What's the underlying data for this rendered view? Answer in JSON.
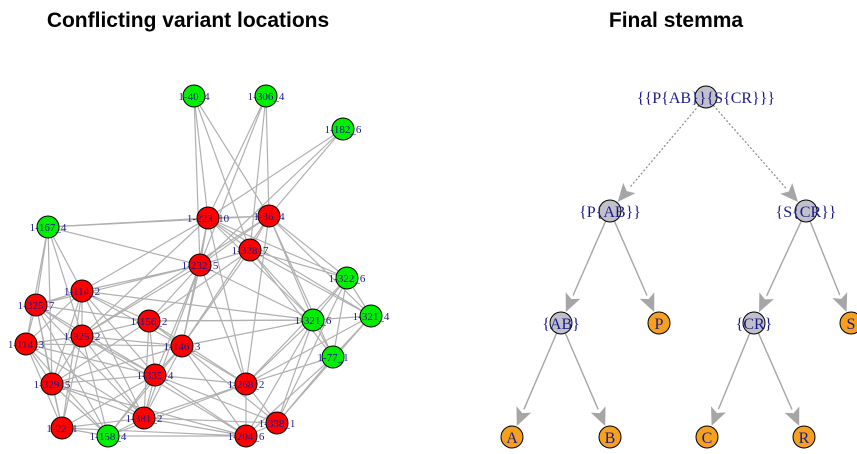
{
  "left_panel": {
    "title": "Conflicting variant locations",
    "colors": {
      "conflict": "#ff0000",
      "non_conflict": "#00ee00"
    },
    "nodes": [
      {
        "id": "n1",
        "label": "1-40_4",
        "status": "non_conflict"
      },
      {
        "id": "n2",
        "label": "1-306_4",
        "status": "non_conflict"
      },
      {
        "id": "n3",
        "label": "1-182_6",
        "status": "non_conflict"
      },
      {
        "id": "n4",
        "label": "1-167_4",
        "status": "non_conflict"
      },
      {
        "id": "n5",
        "label": "1-223_10",
        "status": "conflict"
      },
      {
        "id": "n6",
        "label": "1-36_4",
        "status": "conflict"
      },
      {
        "id": "n7",
        "label": "1-328_7",
        "status": "conflict"
      },
      {
        "id": "n8",
        "label": "1-232_5",
        "status": "conflict"
      },
      {
        "id": "n9",
        "label": "1-322_6",
        "status": "non_conflict"
      },
      {
        "id": "n10",
        "label": "1-114_2",
        "status": "conflict"
      },
      {
        "id": "n11",
        "label": "1-325_7",
        "status": "conflict"
      },
      {
        "id": "n12",
        "label": "1-321_6",
        "status": "non_conflict"
      },
      {
        "id": "n13",
        "label": "1-321_4",
        "status": "non_conflict"
      },
      {
        "id": "n14",
        "label": "1-156_2",
        "status": "conflict"
      },
      {
        "id": "n15",
        "label": "1-325_2",
        "status": "conflict"
      },
      {
        "id": "n16",
        "label": "1-114_3",
        "status": "conflict"
      },
      {
        "id": "n17",
        "label": "1-146_3",
        "status": "conflict"
      },
      {
        "id": "n18",
        "label": "1-77_1",
        "status": "non_conflict"
      },
      {
        "id": "n19",
        "label": "1-335_4",
        "status": "conflict"
      },
      {
        "id": "n20",
        "label": "1-329_5",
        "status": "conflict"
      },
      {
        "id": "n21",
        "label": "1-268_2",
        "status": "conflict"
      },
      {
        "id": "n22",
        "label": "1-381_2",
        "status": "conflict"
      },
      {
        "id": "n23",
        "label": "1-338_1",
        "status": "conflict"
      },
      {
        "id": "n24",
        "label": "1-22_1",
        "status": "conflict"
      },
      {
        "id": "n25",
        "label": "1-158_4",
        "status": "non_conflict"
      },
      {
        "id": "n26",
        "label": "1-204_6",
        "status": "conflict"
      }
    ],
    "edges": [
      [
        "n1",
        "n5"
      ],
      [
        "n1",
        "n6"
      ],
      [
        "n1",
        "n7"
      ],
      [
        "n1",
        "n8"
      ],
      [
        "n2",
        "n5"
      ],
      [
        "n2",
        "n6"
      ],
      [
        "n2",
        "n8"
      ],
      [
        "n2",
        "n7"
      ],
      [
        "n3",
        "n5"
      ],
      [
        "n3",
        "n6"
      ],
      [
        "n3",
        "n8"
      ],
      [
        "n4",
        "n5"
      ],
      [
        "n4",
        "n10"
      ],
      [
        "n4",
        "n11"
      ],
      [
        "n4",
        "n15"
      ],
      [
        "n4",
        "n16"
      ],
      [
        "n4",
        "n20"
      ],
      [
        "n4",
        "n8"
      ],
      [
        "n4",
        "n6"
      ],
      [
        "n5",
        "n6"
      ],
      [
        "n5",
        "n7"
      ],
      [
        "n5",
        "n8"
      ],
      [
        "n5",
        "n10"
      ],
      [
        "n5",
        "n15"
      ],
      [
        "n5",
        "n12"
      ],
      [
        "n5",
        "n9"
      ],
      [
        "n5",
        "n17"
      ],
      [
        "n5",
        "n21"
      ],
      [
        "n5",
        "n13"
      ],
      [
        "n6",
        "n7"
      ],
      [
        "n6",
        "n8"
      ],
      [
        "n6",
        "n9"
      ],
      [
        "n6",
        "n12"
      ],
      [
        "n6",
        "n13"
      ],
      [
        "n6",
        "n17"
      ],
      [
        "n6",
        "n21"
      ],
      [
        "n6",
        "n18"
      ],
      [
        "n6",
        "n15"
      ],
      [
        "n7",
        "n8"
      ],
      [
        "n7",
        "n9"
      ],
      [
        "n7",
        "n12"
      ],
      [
        "n7",
        "n17"
      ],
      [
        "n7",
        "n14"
      ],
      [
        "n7",
        "n13"
      ],
      [
        "n7",
        "n18"
      ],
      [
        "n8",
        "n10"
      ],
      [
        "n8",
        "n14"
      ],
      [
        "n8",
        "n15"
      ],
      [
        "n8",
        "n17"
      ],
      [
        "n8",
        "n19"
      ],
      [
        "n8",
        "n21"
      ],
      [
        "n8",
        "n22"
      ],
      [
        "n8",
        "n12"
      ],
      [
        "n8",
        "n11"
      ],
      [
        "n9",
        "n12"
      ],
      [
        "n9",
        "n13"
      ],
      [
        "n9",
        "n18"
      ],
      [
        "n9",
        "n21"
      ],
      [
        "n9",
        "n23"
      ],
      [
        "n10",
        "n11"
      ],
      [
        "n10",
        "n14"
      ],
      [
        "n10",
        "n15"
      ],
      [
        "n10",
        "n16"
      ],
      [
        "n10",
        "n17"
      ],
      [
        "n10",
        "n19"
      ],
      [
        "n10",
        "n20"
      ],
      [
        "n10",
        "n22"
      ],
      [
        "n10",
        "n24"
      ],
      [
        "n10",
        "n12"
      ],
      [
        "n11",
        "n14"
      ],
      [
        "n11",
        "n15"
      ],
      [
        "n11",
        "n16"
      ],
      [
        "n11",
        "n19"
      ],
      [
        "n11",
        "n20"
      ],
      [
        "n11",
        "n22"
      ],
      [
        "n11",
        "n24"
      ],
      [
        "n11",
        "n25"
      ],
      [
        "n12",
        "n13"
      ],
      [
        "n12",
        "n18"
      ],
      [
        "n12",
        "n21"
      ],
      [
        "n12",
        "n23"
      ],
      [
        "n12",
        "n26"
      ],
      [
        "n12",
        "n17"
      ],
      [
        "n12",
        "n14"
      ],
      [
        "n13",
        "n18"
      ],
      [
        "n13",
        "n21"
      ],
      [
        "n13",
        "n23"
      ],
      [
        "n14",
        "n15"
      ],
      [
        "n14",
        "n17"
      ],
      [
        "n14",
        "n19"
      ],
      [
        "n14",
        "n20"
      ],
      [
        "n14",
        "n22"
      ],
      [
        "n14",
        "n21"
      ],
      [
        "n14",
        "n12"
      ],
      [
        "n15",
        "n16"
      ],
      [
        "n15",
        "n17"
      ],
      [
        "n15",
        "n19"
      ],
      [
        "n15",
        "n20"
      ],
      [
        "n15",
        "n22"
      ],
      [
        "n15",
        "n24"
      ],
      [
        "n15",
        "n25"
      ],
      [
        "n15",
        "n26"
      ],
      [
        "n16",
        "n17"
      ],
      [
        "n16",
        "n19"
      ],
      [
        "n16",
        "n20"
      ],
      [
        "n16",
        "n22"
      ],
      [
        "n16",
        "n24"
      ],
      [
        "n16",
        "n25"
      ],
      [
        "n17",
        "n19"
      ],
      [
        "n17",
        "n21"
      ],
      [
        "n17",
        "n22"
      ],
      [
        "n17",
        "n23"
      ],
      [
        "n17",
        "n26"
      ],
      [
        "n17",
        "n20"
      ],
      [
        "n17",
        "n25"
      ],
      [
        "n18",
        "n21"
      ],
      [
        "n18",
        "n23"
      ],
      [
        "n18",
        "n26"
      ],
      [
        "n19",
        "n20"
      ],
      [
        "n19",
        "n21"
      ],
      [
        "n19",
        "n22"
      ],
      [
        "n19",
        "n24"
      ],
      [
        "n19",
        "n25"
      ],
      [
        "n19",
        "n26"
      ],
      [
        "n19",
        "n23"
      ],
      [
        "n20",
        "n22"
      ],
      [
        "n20",
        "n24"
      ],
      [
        "n20",
        "n25"
      ],
      [
        "n20",
        "n26"
      ],
      [
        "n21",
        "n22"
      ],
      [
        "n21",
        "n23"
      ],
      [
        "n21",
        "n26"
      ],
      [
        "n21",
        "n25"
      ],
      [
        "n22",
        "n23"
      ],
      [
        "n22",
        "n24"
      ],
      [
        "n22",
        "n25"
      ],
      [
        "n22",
        "n26"
      ],
      [
        "n23",
        "n26"
      ],
      [
        "n24",
        "n25"
      ],
      [
        "n24",
        "n26"
      ],
      [
        "n25",
        "n26"
      ]
    ]
  },
  "right_panel": {
    "title": "Final stemma",
    "colors": {
      "hypothetical": "#c0c0c8",
      "witness": "#f5a01e"
    },
    "nodes": [
      {
        "id": "root",
        "label": "{{P{AB}}{S{CR}}}",
        "kind": "hypothetical"
      },
      {
        "id": "pab",
        "label": "{P{AB}}",
        "kind": "hypothetical"
      },
      {
        "id": "scr",
        "label": "{S{CR}}",
        "kind": "hypothetical"
      },
      {
        "id": "ab",
        "label": "{AB}",
        "kind": "hypothetical"
      },
      {
        "id": "p",
        "label": "P",
        "kind": "witness"
      },
      {
        "id": "cr",
        "label": "{CR}",
        "kind": "hypothetical"
      },
      {
        "id": "s",
        "label": "S",
        "kind": "witness"
      },
      {
        "id": "a",
        "label": "A",
        "kind": "witness"
      },
      {
        "id": "b",
        "label": "B",
        "kind": "witness"
      },
      {
        "id": "c",
        "label": "C",
        "kind": "witness"
      },
      {
        "id": "r",
        "label": "R",
        "kind": "witness"
      }
    ],
    "edges": [
      {
        "from": "root",
        "to": "pab",
        "style": "dashed"
      },
      {
        "from": "root",
        "to": "scr",
        "style": "dashed"
      },
      {
        "from": "pab",
        "to": "ab",
        "style": "solid"
      },
      {
        "from": "pab",
        "to": "p",
        "style": "solid"
      },
      {
        "from": "scr",
        "to": "cr",
        "style": "solid"
      },
      {
        "from": "scr",
        "to": "s",
        "style": "solid"
      },
      {
        "from": "ab",
        "to": "a",
        "style": "solid"
      },
      {
        "from": "ab",
        "to": "b",
        "style": "solid"
      },
      {
        "from": "cr",
        "to": "c",
        "style": "solid"
      },
      {
        "from": "cr",
        "to": "r",
        "style": "solid"
      }
    ]
  }
}
